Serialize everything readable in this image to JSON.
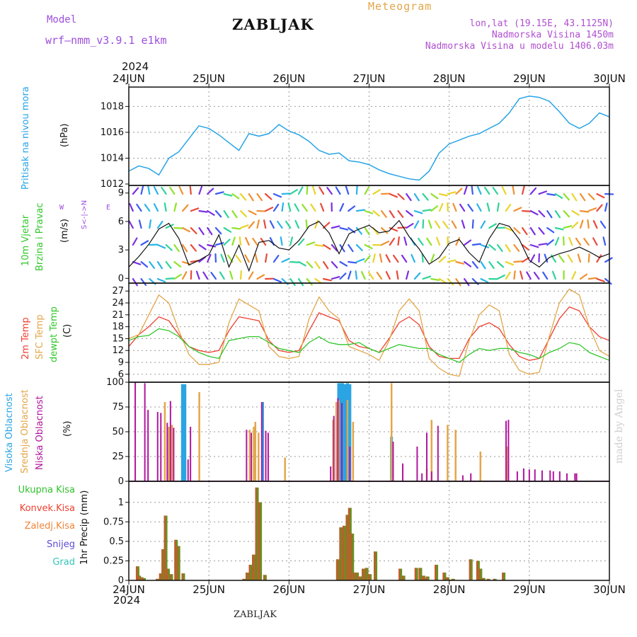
{
  "header": {
    "model_label": "Model",
    "model_name": "wrf—nmm_v3.9.1 e1km",
    "station": "ZABLJAK",
    "product": "Meteogram",
    "coords": "lon,lat (19.15E, 43.1125N)",
    "elevation": "Nadmorska Visina 1450m",
    "model_elevation": "Nadmorska Visina u modelu 1406.03m"
  },
  "footer_station": "ZABLJAK",
  "credit": "made by Angel",
  "colors": {
    "pressure": "#27a4e6",
    "temp_2m": "#ee4030",
    "temp_sfc": "#e3a64a",
    "dewpoint": "#31c72b",
    "cloud_high": "#2ba4e3",
    "cloud_mid": "#e3a64a",
    "cloud_low": "#b0169e",
    "precip_total": "#2fc32c",
    "precip_conv": "#ee4030",
    "precip_ice": "#f0853a",
    "precip_snow": "#5b4bd6",
    "precip_hail": "#35c4b8",
    "wind_speed": "#111111"
  },
  "time_axis": {
    "year": "2024",
    "labels": [
      "24JUN",
      "25JUN",
      "26JUN",
      "27JUN",
      "28JUN",
      "29JUN",
      "30JUN"
    ]
  },
  "panels": {
    "pressure": {
      "title": "Pritisak na nivou mora",
      "unit": "(hPa)"
    },
    "wind": {
      "title_line1": "10m Vjetar",
      "title_line2": "Brzina i Pravac",
      "unit": "(m/s)",
      "compass_ns": "S<-|->N",
      "compass_w": "W",
      "compass_e": "E"
    },
    "temp": {
      "label_2m": "2m Temp",
      "label_sfc": "SFC Temp",
      "label_dew": "dewpt Temp",
      "unit": "(C)"
    },
    "cloud": {
      "label_high": "Visoka Oblacnost",
      "label_mid": "Srednja Oblacnost",
      "label_low": "Niska Oblacnost",
      "unit": "(%)"
    },
    "precip": {
      "labels": [
        "Ukupna Kisa",
        "Konvek.Kisa",
        "Zaledj.Kisa",
        "Snijeg",
        "Grad"
      ],
      "ylabel": "1hr Precip (mm)"
    }
  },
  "chart_data": [
    {
      "type": "line",
      "name": "pressure",
      "ylabel": "(hPa)",
      "ylim": [
        1012,
        1019.5
      ],
      "yticks": [
        1012,
        1014,
        1016,
        1018
      ],
      "grid": true,
      "x_days": [
        0,
        0.125,
        0.25,
        0.375,
        0.5,
        0.625,
        0.75,
        0.875,
        1,
        1.125,
        1.25,
        1.375,
        1.5,
        1.625,
        1.75,
        1.875,
        2,
        2.125,
        2.25,
        2.375,
        2.5,
        2.625,
        2.75,
        2.875,
        3,
        3.125,
        3.25,
        3.375,
        3.5,
        3.625,
        3.75,
        3.875,
        4,
        4.125,
        4.25,
        4.375,
        4.5,
        4.625,
        4.75,
        4.875,
        5,
        5.125,
        5.25,
        5.375,
        5.5,
        5.625,
        5.75,
        5.875,
        6
      ],
      "series": [
        {
          "values": [
            1013.0,
            1013.4,
            1013.2,
            1012.7,
            1014.0,
            1014.5,
            1015.5,
            1016.5,
            1016.3,
            1015.8,
            1015.2,
            1014.6,
            1015.9,
            1015.7,
            1015.9,
            1016.6,
            1016.1,
            1015.8,
            1015.3,
            1014.6,
            1014.3,
            1014.4,
            1013.8,
            1013.7,
            1013.5,
            1013.1,
            1012.8,
            1012.6,
            1012.4,
            1012.3,
            1013.0,
            1014.4,
            1015.1,
            1015.4,
            1015.7,
            1015.9,
            1016.3,
            1016.7,
            1017.5,
            1018.6,
            1018.8,
            1018.7,
            1018.4,
            1017.6,
            1016.7,
            1016.3,
            1016.7,
            1017.5,
            1017.2
          ]
        }
      ]
    },
    {
      "type": "line",
      "name": "wind_speed",
      "ylabel": "(m/s)",
      "ylim": [
        -0.5,
        9.8
      ],
      "yticks": [
        0,
        3,
        6,
        9
      ],
      "x_days": [
        0,
        0.125,
        0.25,
        0.375,
        0.5,
        0.625,
        0.75,
        0.875,
        1,
        1.125,
        1.25,
        1.375,
        1.5,
        1.625,
        1.75,
        1.875,
        2,
        2.125,
        2.25,
        2.375,
        2.5,
        2.625,
        2.75,
        2.875,
        3,
        3.125,
        3.25,
        3.375,
        3.5,
        3.625,
        3.75,
        3.875,
        4,
        4.125,
        4.25,
        4.375,
        4.5,
        4.625,
        4.75,
        4.875,
        5,
        5.125,
        5.25,
        5.375,
        5.5,
        5.625,
        5.75,
        5.875,
        6
      ],
      "series": [
        {
          "values": [
            1.2,
            2.3,
            3.6,
            5.2,
            5.8,
            4.2,
            1.4,
            1.9,
            2.5,
            4.6,
            1.2,
            3.5,
            0.8,
            3.8,
            4.0,
            3.2,
            3.0,
            4.0,
            5.5,
            6.0,
            4.8,
            2.6,
            4.7,
            5.2,
            5.6,
            4.8,
            5.0,
            6.1,
            4.4,
            3.1,
            1.5,
            2.2,
            3.7,
            4.1,
            2.7,
            1.7,
            4.2,
            5.8,
            5.5,
            4.1,
            1.9,
            1.2,
            2.2,
            2.6,
            2.9,
            3.3,
            2.8,
            2.2,
            2.6
          ]
        }
      ]
    },
    {
      "type": "line",
      "name": "temperature",
      "ylabel": "(C)",
      "ylim": [
        4,
        29
      ],
      "yticks": [
        6,
        9,
        12,
        15,
        18,
        21,
        24,
        27
      ],
      "grid": true,
      "x_days": [
        0,
        0.125,
        0.25,
        0.375,
        0.5,
        0.625,
        0.75,
        0.875,
        1,
        1.125,
        1.25,
        1.375,
        1.5,
        1.625,
        1.75,
        1.875,
        2,
        2.125,
        2.25,
        2.375,
        2.5,
        2.625,
        2.75,
        2.875,
        3,
        3.125,
        3.25,
        3.375,
        3.5,
        3.625,
        3.75,
        3.875,
        4,
        4.125,
        4.25,
        4.375,
        4.5,
        4.625,
        4.75,
        4.875,
        5,
        5.125,
        5.25,
        5.375,
        5.5,
        5.625,
        5.75,
        5.875,
        6
      ],
      "series": [
        {
          "name": "2m Temp",
          "values": [
            13.0,
            16.0,
            18.0,
            20.5,
            19.5,
            16.0,
            13.0,
            12.0,
            11.5,
            12.0,
            17.0,
            20.5,
            20.0,
            19.5,
            14.5,
            12.0,
            11.5,
            12.0,
            17.0,
            21.5,
            20.5,
            19.5,
            14.5,
            13.0,
            12.5,
            11.5,
            15.0,
            19.0,
            20.5,
            18.5,
            13.0,
            10.5,
            10.0,
            10.0,
            15.0,
            18.0,
            19.0,
            17.5,
            13.5,
            10.5,
            9.5,
            10.0,
            15.0,
            20.0,
            23.0,
            22.0,
            18.0,
            15.5,
            14.5
          ]
        },
        {
          "name": "SFC Temp",
          "values": [
            15.0,
            16.0,
            21.0,
            26.0,
            24.0,
            17.0,
            11.0,
            8.5,
            8.5,
            9.0,
            19.0,
            25.0,
            23.5,
            22.0,
            13.0,
            10.5,
            10.0,
            10.5,
            20.0,
            25.5,
            22.0,
            20.0,
            13.0,
            12.0,
            11.0,
            9.5,
            14.5,
            22.0,
            25.0,
            22.0,
            10.0,
            7.5,
            6.0,
            5.5,
            14.5,
            21.0,
            23.5,
            22.0,
            11.0,
            7.0,
            6.0,
            6.5,
            15.5,
            24.0,
            27.5,
            26.0,
            18.0,
            12.0,
            10.5
          ]
        },
        {
          "name": "dewpt Temp",
          "values": [
            14.5,
            15.5,
            15.8,
            17.5,
            17.0,
            15.5,
            13.0,
            11.5,
            10.5,
            10.0,
            14.5,
            15.0,
            15.5,
            15.5,
            14.0,
            12.5,
            12.0,
            11.5,
            14.0,
            15.5,
            14.0,
            13.5,
            13.5,
            14.0,
            12.5,
            11.5,
            12.5,
            13.5,
            13.0,
            12.5,
            12.5,
            11.0,
            10.0,
            9.0,
            11.0,
            12.5,
            12.0,
            12.5,
            12.5,
            11.5,
            11.0,
            10.0,
            11.5,
            12.5,
            14.0,
            13.5,
            11.5,
            10.5,
            9.5
          ]
        }
      ]
    },
    {
      "type": "bar",
      "name": "cloud_cover",
      "ylabel": "(%)",
      "ylim": [
        0,
        100
      ],
      "yticks": [
        0,
        25,
        50,
        75,
        100
      ],
      "grid": true,
      "series": [
        {
          "name": "Visoka Oblacnost",
          "x_days": [
            0.67,
            0.7,
            1.67,
            2.62,
            2.65,
            2.67,
            2.7,
            2.73,
            2.76,
            3.28
          ],
          "values": [
            98,
            98,
            80,
            99,
            99,
            99,
            98,
            99,
            98,
            45
          ]
        },
        {
          "name": "Srednja Oblacnost",
          "x_days": [
            0.45,
            0.5,
            0.54,
            0.88,
            1.51,
            1.56,
            1.58,
            1.62,
            1.95,
            2.55,
            2.59,
            2.62,
            2.73,
            2.8,
            3.28,
            3.72,
            3.78,
            3.98,
            4.08,
            4.39,
            4.72
          ],
          "values": [
            80,
            55,
            57,
            90,
            52,
            55,
            60,
            49,
            24,
            62,
            80,
            82,
            82,
            60,
            99,
            13,
            62,
            57,
            52,
            30,
            35
          ]
        },
        {
          "name": "Niska Oblacnost",
          "x_days": [
            0.08,
            0.2,
            0.24,
            0.36,
            0.4,
            0.48,
            0.52,
            0.56,
            0.74,
            0.77,
            1.47,
            1.53,
            1.66,
            1.71,
            1.74,
            2.52,
            2.56,
            2.61,
            2.66,
            2.76,
            3.3,
            3.42,
            3.6,
            3.66,
            3.72,
            3.78,
            3.86,
            4.17,
            4.27,
            4.71,
            4.74,
            4.85,
            4.93,
            5.0,
            5.07,
            5.16,
            5.26,
            5.3,
            5.38,
            5.47,
            5.57,
            5.59
          ],
          "values": [
            100,
            99,
            72,
            70,
            69,
            59,
            81,
            54,
            22,
            55,
            52,
            49,
            80,
            51,
            49,
            15,
            66,
            84,
            79,
            35,
            40,
            18,
            35,
            8,
            49,
            10,
            56,
            6,
            8,
            61,
            62,
            10,
            13,
            12,
            12,
            11,
            11,
            10,
            10,
            8,
            8,
            8
          ]
        }
      ]
    },
    {
      "type": "bar",
      "name": "precipitation",
      "ylabel": "1hr Precip (mm)",
      "ylim": [
        0,
        1.27
      ],
      "yticks": [
        0,
        0.25,
        0.5,
        0.75,
        1
      ],
      "grid": true,
      "series": [
        {
          "name": "Ukupna Kisa",
          "x_days": [
            0.11,
            0.13,
            0.16,
            0.19,
            0.36,
            0.4,
            0.43,
            0.46,
            0.49,
            0.53,
            0.59,
            0.62,
            0.68,
            1.44,
            1.48,
            1.52,
            1.56,
            1.6,
            1.64,
            1.7,
            2.61,
            2.65,
            2.69,
            2.73,
            2.76,
            2.79,
            2.82,
            2.85,
            2.89,
            2.93,
            2.97,
            3.01,
            3.08,
            3.39,
            3.43,
            3.59,
            3.64,
            3.68,
            3.7,
            3.73,
            3.84,
            3.94,
            3.98,
            4.02,
            4.05,
            4.27,
            4.36,
            4.39,
            4.43,
            4.49,
            4.57,
            4.68
          ],
          "values": [
            0.18,
            0.06,
            0.04,
            0.03,
            0.02,
            0.09,
            0.4,
            0.83,
            0.15,
            0.08,
            0.52,
            0.44,
            0.09,
            0.02,
            0.1,
            0.2,
            0.33,
            1.19,
            1.0,
            0.07,
            0.27,
            0.68,
            0.7,
            0.84,
            0.93,
            0.6,
            0.1,
            0.1,
            0.05,
            0.15,
            0.16,
            0.08,
            0.37,
            0.15,
            0.06,
            0.16,
            0.16,
            0.06,
            0.03,
            0.05,
            0.2,
            0.1,
            0.04,
            0.01,
            0.02,
            0.27,
            0.25,
            0.15,
            0.03,
            0.02,
            0.02,
            0.1
          ]
        }
      ]
    }
  ]
}
